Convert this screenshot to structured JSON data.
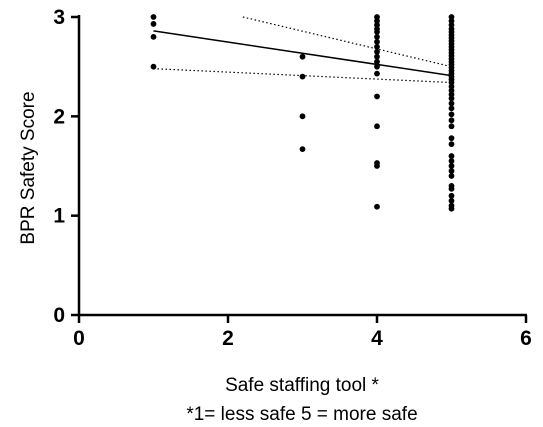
{
  "chart_data": {
    "type": "scatter",
    "title": "",
    "xlabel": "Safe staffing tool *",
    "xlabel_note": "*1= less safe 5 = more safe",
    "ylabel": "BPR Safety Score",
    "xlim": [
      0,
      6
    ],
    "ylim": [
      0,
      3
    ],
    "x_ticks": [
      0,
      2,
      4,
      6
    ],
    "y_ticks": [
      0,
      1,
      2,
      3
    ],
    "grid": false,
    "legend": "none",
    "point_color": "#000000",
    "line_color": "#000000",
    "points": [
      {
        "x": 1,
        "y": 3.0
      },
      {
        "x": 1,
        "y": 2.93
      },
      {
        "x": 1,
        "y": 2.8
      },
      {
        "x": 1,
        "y": 2.5
      },
      {
        "x": 3,
        "y": 2.6
      },
      {
        "x": 3,
        "y": 2.4
      },
      {
        "x": 3,
        "y": 2.0
      },
      {
        "x": 3,
        "y": 1.67
      },
      {
        "x": 4,
        "y": 3.0
      },
      {
        "x": 4,
        "y": 2.96
      },
      {
        "x": 4,
        "y": 2.92
      },
      {
        "x": 4,
        "y": 2.88
      },
      {
        "x": 4,
        "y": 2.85
      },
      {
        "x": 4,
        "y": 2.8
      },
      {
        "x": 4,
        "y": 2.75
      },
      {
        "x": 4,
        "y": 2.7
      },
      {
        "x": 4,
        "y": 2.65
      },
      {
        "x": 4,
        "y": 2.6
      },
      {
        "x": 4,
        "y": 2.55
      },
      {
        "x": 4,
        "y": 2.5
      },
      {
        "x": 4,
        "y": 2.43
      },
      {
        "x": 4,
        "y": 2.2
      },
      {
        "x": 4,
        "y": 1.9
      },
      {
        "x": 4,
        "y": 1.53
      },
      {
        "x": 4,
        "y": 1.5
      },
      {
        "x": 4,
        "y": 1.09
      },
      {
        "x": 5,
        "y": 3.0
      },
      {
        "x": 5,
        "y": 2.96
      },
      {
        "x": 5,
        "y": 2.92
      },
      {
        "x": 5,
        "y": 2.88
      },
      {
        "x": 5,
        "y": 2.85
      },
      {
        "x": 5,
        "y": 2.82
      },
      {
        "x": 5,
        "y": 2.79
      },
      {
        "x": 5,
        "y": 2.76
      },
      {
        "x": 5,
        "y": 2.73
      },
      {
        "x": 5,
        "y": 2.7
      },
      {
        "x": 5,
        "y": 2.67
      },
      {
        "x": 5,
        "y": 2.64
      },
      {
        "x": 5,
        "y": 2.61
      },
      {
        "x": 5,
        "y": 2.58
      },
      {
        "x": 5,
        "y": 2.55
      },
      {
        "x": 5,
        "y": 2.52
      },
      {
        "x": 5,
        "y": 2.49
      },
      {
        "x": 5,
        "y": 2.46
      },
      {
        "x": 5,
        "y": 2.43
      },
      {
        "x": 5,
        "y": 2.4
      },
      {
        "x": 5,
        "y": 2.37
      },
      {
        "x": 5,
        "y": 2.34
      },
      {
        "x": 5,
        "y": 2.3
      },
      {
        "x": 5,
        "y": 2.26
      },
      {
        "x": 5,
        "y": 2.22
      },
      {
        "x": 5,
        "y": 2.18
      },
      {
        "x": 5,
        "y": 2.13
      },
      {
        "x": 5,
        "y": 2.08
      },
      {
        "x": 5,
        "y": 2.02
      },
      {
        "x": 5,
        "y": 1.96
      },
      {
        "x": 5,
        "y": 1.9
      },
      {
        "x": 5,
        "y": 1.78
      },
      {
        "x": 5,
        "y": 1.72
      },
      {
        "x": 5,
        "y": 1.6
      },
      {
        "x": 5,
        "y": 1.55
      },
      {
        "x": 5,
        "y": 1.5
      },
      {
        "x": 5,
        "y": 1.45
      },
      {
        "x": 5,
        "y": 1.4
      },
      {
        "x": 5,
        "y": 1.3
      },
      {
        "x": 5,
        "y": 1.27
      },
      {
        "x": 5,
        "y": 1.2
      },
      {
        "x": 5,
        "y": 1.15
      },
      {
        "x": 5,
        "y": 1.1
      },
      {
        "x": 5,
        "y": 1.07
      }
    ],
    "regression_line": {
      "x": [
        1,
        5
      ],
      "y": [
        2.86,
        2.41
      ]
    },
    "confidence_band": {
      "upper": {
        "x": [
          2.2,
          5
        ],
        "y": [
          3.0,
          2.5
        ]
      },
      "lower": {
        "x": [
          1,
          5
        ],
        "y": [
          2.48,
          2.34
        ]
      }
    }
  }
}
